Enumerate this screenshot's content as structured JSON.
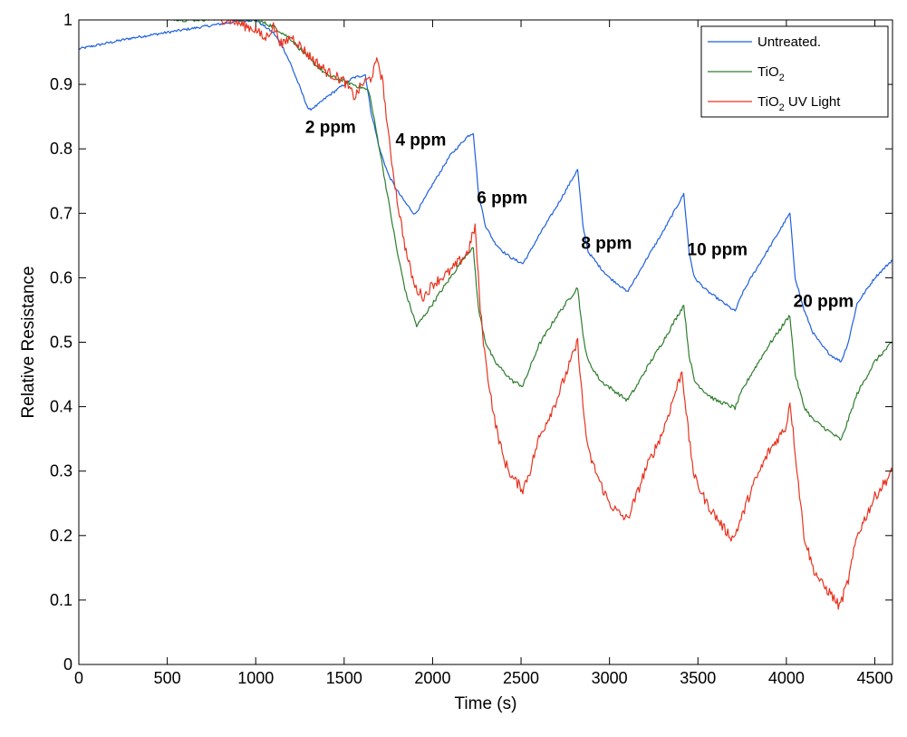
{
  "chart_data": {
    "type": "line",
    "title": "",
    "xlabel": "Time (s)",
    "ylabel": "Relative Resistance",
    "xlim": [
      0,
      4600
    ],
    "ylim": [
      0,
      1
    ],
    "xticks": [
      0,
      500,
      1000,
      1500,
      2000,
      2500,
      3000,
      3500,
      4000,
      4500
    ],
    "yticks": [
      0,
      0.1,
      0.2,
      0.3,
      0.4,
      0.5,
      0.6,
      0.7,
      0.8,
      0.9,
      1
    ],
    "xtick_labels": [
      "0",
      "500",
      "1000",
      "1500",
      "2000",
      "2500",
      "3000",
      "3500",
      "4000",
      "4500"
    ],
    "ytick_labels": [
      "0",
      "0.1",
      "0.2",
      "0.3",
      "0.4",
      "0.5",
      "0.6",
      "0.7",
      "0.8",
      "0.9",
      "1"
    ],
    "grid": false,
    "legend_position": "top-right",
    "series": [
      {
        "name": "Untreated.",
        "color": "#1f5fe0",
        "noise": 0.002,
        "x": [
          0,
          300,
          600,
          900,
          1000,
          1050,
          1100,
          1150,
          1200,
          1250,
          1300,
          1350,
          1400,
          1450,
          1500,
          1550,
          1620,
          1650,
          1700,
          1750,
          1800,
          1850,
          1900,
          1950,
          2000,
          2100,
          2200,
          2230,
          2260,
          2300,
          2350,
          2400,
          2450,
          2510,
          2550,
          2600,
          2700,
          2820,
          2850,
          2880,
          2950,
          3000,
          3050,
          3100,
          3150,
          3200,
          3300,
          3420,
          3450,
          3480,
          3550,
          3600,
          3650,
          3710,
          3750,
          3800,
          3900,
          4020,
          4050,
          4100,
          4150,
          4200,
          4250,
          4310,
          4350,
          4400,
          4500,
          4600
        ],
        "y": [
          0.955,
          0.972,
          0.985,
          0.998,
          1.0,
          0.99,
          0.98,
          0.96,
          0.93,
          0.895,
          0.86,
          0.868,
          0.88,
          0.89,
          0.9,
          0.91,
          0.915,
          0.86,
          0.8,
          0.76,
          0.735,
          0.715,
          0.698,
          0.72,
          0.745,
          0.79,
          0.82,
          0.825,
          0.73,
          0.68,
          0.655,
          0.64,
          0.63,
          0.622,
          0.64,
          0.665,
          0.71,
          0.768,
          0.68,
          0.64,
          0.615,
          0.6,
          0.59,
          0.578,
          0.6,
          0.625,
          0.67,
          0.73,
          0.64,
          0.6,
          0.58,
          0.57,
          0.56,
          0.548,
          0.575,
          0.6,
          0.645,
          0.7,
          0.6,
          0.55,
          0.515,
          0.495,
          0.48,
          0.47,
          0.5,
          0.56,
          0.6,
          0.628
        ]
      },
      {
        "name": "TiO2",
        "color": "#2e7d2e",
        "noise": 0.003,
        "x": [
          450,
          600,
          800,
          1000,
          1100,
          1200,
          1300,
          1400,
          1500,
          1600,
          1640,
          1700,
          1750,
          1800,
          1850,
          1910,
          1950,
          2000,
          2100,
          2200,
          2230,
          2260,
          2300,
          2350,
          2400,
          2450,
          2510,
          2550,
          2600,
          2700,
          2820,
          2850,
          2880,
          2950,
          3000,
          3050,
          3100,
          3150,
          3200,
          3300,
          3420,
          3450,
          3480,
          3550,
          3600,
          3650,
          3710,
          3750,
          3800,
          3900,
          4020,
          4050,
          4100,
          4150,
          4200,
          4250,
          4310,
          4350,
          4400,
          4500,
          4600
        ],
        "y": [
          1.005,
          1.0,
          1.002,
          1.0,
          0.99,
          0.97,
          0.94,
          0.915,
          0.905,
          0.895,
          0.89,
          0.8,
          0.72,
          0.64,
          0.575,
          0.525,
          0.54,
          0.56,
          0.6,
          0.64,
          0.645,
          0.55,
          0.5,
          0.47,
          0.455,
          0.44,
          0.432,
          0.46,
          0.495,
          0.54,
          0.585,
          0.51,
          0.47,
          0.44,
          0.43,
          0.42,
          0.41,
          0.43,
          0.455,
          0.5,
          0.558,
          0.48,
          0.44,
          0.42,
          0.41,
          0.405,
          0.398,
          0.425,
          0.45,
          0.495,
          0.542,
          0.45,
          0.4,
          0.38,
          0.37,
          0.36,
          0.348,
          0.38,
          0.42,
          0.47,
          0.5
        ]
      },
      {
        "name": "TiO2 UV Light",
        "color": "#e8331f",
        "noise": 0.008,
        "x": [
          700,
          850,
          1000,
          1050,
          1100,
          1150,
          1200,
          1300,
          1400,
          1500,
          1560,
          1600,
          1650,
          1690,
          1720,
          1750,
          1800,
          1850,
          1900,
          1950,
          2000,
          2100,
          2200,
          2240,
          2270,
          2300,
          2350,
          2400,
          2450,
          2510,
          2550,
          2600,
          2700,
          2820,
          2850,
          2880,
          2950,
          3000,
          3050,
          3100,
          3150,
          3200,
          3300,
          3410,
          3450,
          3480,
          3550,
          3600,
          3650,
          3700,
          3750,
          3800,
          3900,
          4000,
          4020,
          4050,
          4080,
          4100,
          4150,
          4200,
          4250,
          4300,
          4350,
          4400,
          4500,
          4600
        ],
        "y": [
          1.005,
          1.0,
          0.985,
          0.97,
          0.99,
          0.96,
          0.975,
          0.945,
          0.92,
          0.905,
          0.88,
          0.9,
          0.91,
          0.938,
          0.9,
          0.82,
          0.72,
          0.64,
          0.585,
          0.57,
          0.59,
          0.61,
          0.64,
          0.68,
          0.55,
          0.47,
          0.38,
          0.32,
          0.29,
          0.272,
          0.3,
          0.35,
          0.41,
          0.5,
          0.4,
          0.33,
          0.28,
          0.25,
          0.235,
          0.225,
          0.26,
          0.3,
          0.36,
          0.455,
          0.35,
          0.29,
          0.25,
          0.23,
          0.21,
          0.195,
          0.23,
          0.27,
          0.33,
          0.37,
          0.41,
          0.33,
          0.25,
          0.2,
          0.15,
          0.125,
          0.11,
          0.09,
          0.13,
          0.2,
          0.26,
          0.3
        ]
      }
    ],
    "annotations": [
      {
        "text": "2 ppm",
        "x": 1280,
        "y": 0.825
      },
      {
        "text": "4 ppm",
        "x": 1790,
        "y": 0.805
      },
      {
        "text": "6 ppm",
        "x": 2250,
        "y": 0.715
      },
      {
        "text": "8 ppm",
        "x": 2840,
        "y": 0.645
      },
      {
        "text": "10 ppm",
        "x": 3440,
        "y": 0.635
      },
      {
        "text": "20 ppm",
        "x": 4040,
        "y": 0.555
      }
    ]
  },
  "legend": {
    "items": [
      {
        "main": "Untreated.",
        "sub": "",
        "tail": ""
      },
      {
        "main": "TiO",
        "sub": "2",
        "tail": ""
      },
      {
        "main": "TiO",
        "sub": "2",
        "tail": " UV Light"
      }
    ]
  }
}
